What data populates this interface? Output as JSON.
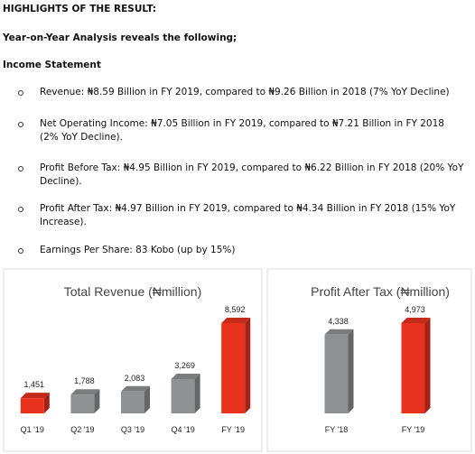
{
  "header": {
    "title": "HIGHLIGHTS OF THE RESULT:",
    "subtitle": "Year-on-Year Analysis reveals the following;",
    "section": "Income Statement"
  },
  "bullets": [
    "Revenue: ₦8.59 Billion in FY 2019, compared to ₦9.26 Billion in 2018 (7% YoY Decline)",
    "Net Operating Income: ₦7.05 Billion in FY 2019, compared to ₦7.21 Billion in FY 2018 (2% YoY Decline).",
    "Profit Before Tax: ₦4.95 Billion in FY 2019, compared to ₦6.22 Billion in FY 2018 (20% YoY Decline).",
    "Profit After Tax: ₦4.97 Billion in FY 2019, compared to ₦4.34 Billion in FY 2018 (15% YoY Increase).",
    "Earnings Per Share: 83 Kobo (up by 15%)"
  ],
  "chart_data": [
    {
      "type": "bar",
      "title": "Total Revenue (₦million)",
      "categories": [
        "Q1 '19",
        "Q2 '19",
        "Q3 '19",
        "Q4 '19",
        "FY '19"
      ],
      "values": [
        1451,
        1788,
        2083,
        3269,
        8592
      ],
      "value_labels": [
        "1,451",
        "1,788",
        "2,083",
        "3,269",
        "8,592"
      ],
      "colors": [
        "#e8321e",
        "#8f9294",
        "#8f9294",
        "#8f9294",
        "#e8321e"
      ]
    },
    {
      "type": "bar",
      "title": "Profit After Tax (₦million)",
      "categories": [
        "FY '18",
        "FY '19"
      ],
      "values": [
        4338,
        4973
      ],
      "value_labels": [
        "4,338",
        "4,973"
      ],
      "colors": [
        "#8f9294",
        "#e8321e"
      ]
    }
  ]
}
